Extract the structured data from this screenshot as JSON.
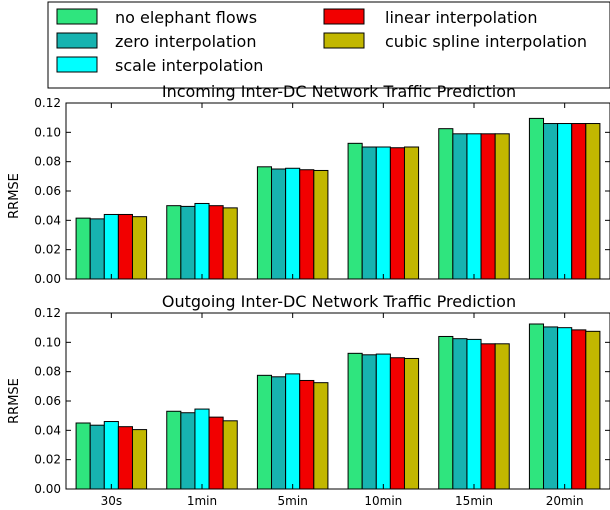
{
  "legend": {
    "entries": [
      {
        "label": "no elephant flows",
        "color": "#2fe57e"
      },
      {
        "label": "zero interpolation",
        "color": "#17b3b0"
      },
      {
        "label": "scale interpolation",
        "color": "#00ffff"
      },
      {
        "label": "linear interpolation",
        "color": "#f20000"
      },
      {
        "label": "cubic spline interpolation",
        "color": "#c2b700"
      }
    ]
  },
  "chart_data": [
    {
      "type": "bar",
      "title": "Incoming Inter-DC Network Traffic Prediction",
      "ylabel": "RRMSE",
      "xlabel": "",
      "ylim": [
        0,
        0.12
      ],
      "yticks": [
        "0.00",
        "0.02",
        "0.04",
        "0.06",
        "0.08",
        "0.10",
        "0.12"
      ],
      "categories": [
        "30s",
        "1min",
        "5min",
        "10min",
        "15min",
        "20min"
      ],
      "show_xtick_labels": false,
      "series": [
        {
          "name": "no elephant flows",
          "values": [
            0.0415,
            0.05,
            0.0765,
            0.0925,
            0.1025,
            0.1095
          ]
        },
        {
          "name": "zero interpolation",
          "values": [
            0.041,
            0.0495,
            0.075,
            0.09,
            0.099,
            0.106
          ]
        },
        {
          "name": "scale interpolation",
          "values": [
            0.044,
            0.0515,
            0.0755,
            0.09,
            0.099,
            0.106
          ]
        },
        {
          "name": "linear interpolation",
          "values": [
            0.044,
            0.05,
            0.0745,
            0.0895,
            0.099,
            0.106
          ]
        },
        {
          "name": "cubic spline interpolation",
          "values": [
            0.0425,
            0.0485,
            0.074,
            0.09,
            0.099,
            0.106
          ]
        }
      ]
    },
    {
      "type": "bar",
      "title": "Outgoing Inter-DC Network Traffic Prediction",
      "ylabel": "RRMSE",
      "xlabel": "",
      "ylim": [
        0,
        0.12
      ],
      "yticks": [
        "0.00",
        "0.02",
        "0.04",
        "0.06",
        "0.08",
        "0.10",
        "0.12"
      ],
      "categories": [
        "30s",
        "1min",
        "5min",
        "10min",
        "15min",
        "20min"
      ],
      "show_xtick_labels": true,
      "series": [
        {
          "name": "no elephant flows",
          "values": [
            0.045,
            0.053,
            0.0775,
            0.0925,
            0.104,
            0.1125
          ]
        },
        {
          "name": "zero interpolation",
          "values": [
            0.0435,
            0.052,
            0.0765,
            0.0915,
            0.1025,
            0.1105
          ]
        },
        {
          "name": "scale interpolation",
          "values": [
            0.046,
            0.0545,
            0.0785,
            0.092,
            0.102,
            0.11
          ]
        },
        {
          "name": "linear interpolation",
          "values": [
            0.0425,
            0.049,
            0.074,
            0.0895,
            0.099,
            0.1085
          ]
        },
        {
          "name": "cubic spline interpolation",
          "values": [
            0.0405,
            0.0465,
            0.0725,
            0.089,
            0.099,
            0.1075
          ]
        }
      ]
    }
  ]
}
